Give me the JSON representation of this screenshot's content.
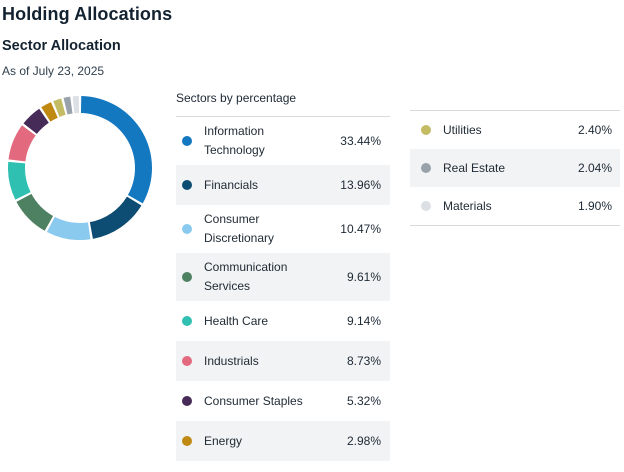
{
  "page": {
    "title": "Holding Allocations",
    "section_title": "Sector Allocation",
    "as_of": "As of July 23, 2025"
  },
  "legend": {
    "title": "Sectors by percentage"
  },
  "colors": {
    "row_alt_bg": "#f2f3f4",
    "divider": "#d8dbde",
    "heading_text": "#132230",
    "body_text": "#212c36"
  },
  "chart_data": {
    "type": "pie",
    "variant": "donut",
    "title": "Sectors by percentage",
    "unit": "%",
    "start_angle_deg": 0,
    "direction": "clockwise",
    "column_split": 8,
    "segments": [
      {
        "label": "Information Technology",
        "value": 33.44,
        "display": "33.44%",
        "color": "#1478c0"
      },
      {
        "label": "Financials",
        "value": 13.96,
        "display": "13.96%",
        "color": "#0d4d73"
      },
      {
        "label": "Consumer Discretionary",
        "value": 10.47,
        "display": "10.47%",
        "color": "#8acaee"
      },
      {
        "label": "Communication Services",
        "value": 9.61,
        "display": "9.61%",
        "color": "#4e8162"
      },
      {
        "label": "Health Care",
        "value": 9.14,
        "display": "9.14%",
        "color": "#2fc0b2"
      },
      {
        "label": "Industrials",
        "value": 8.73,
        "display": "8.73%",
        "color": "#e2697e"
      },
      {
        "label": "Consumer Staples",
        "value": 5.32,
        "display": "5.32%",
        "color": "#462a57"
      },
      {
        "label": "Energy",
        "value": 2.98,
        "display": "2.98%",
        "color": "#c08a12"
      },
      {
        "label": "Utilities",
        "value": 2.4,
        "display": "2.40%",
        "color": "#c3bc64"
      },
      {
        "label": "Real Estate",
        "value": 2.04,
        "display": "2.04%",
        "color": "#99a1ab"
      },
      {
        "label": "Materials",
        "value": 1.9,
        "display": "1.90%",
        "color": "#dcdfe3"
      }
    ]
  }
}
